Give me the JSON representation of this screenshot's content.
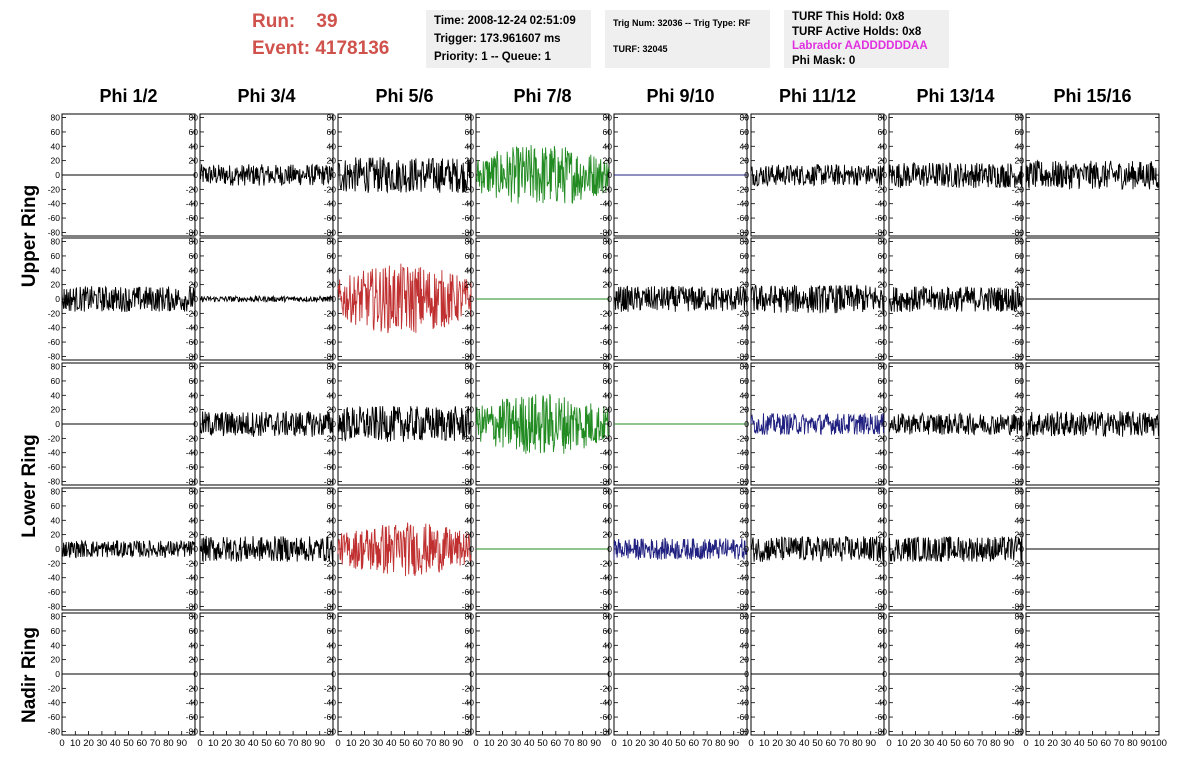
{
  "header": {
    "run_label": "Run:",
    "run_value": "39",
    "event_label": "Event:",
    "event_value": "4178136"
  },
  "info1": {
    "time": "Time: 2008-12-24 02:51:09",
    "trigger": "Trigger: 173.961607 ms",
    "priority": "Priority: 1 -- Queue: 1"
  },
  "info2": {
    "trig": "Trig Num: 32036 -- Trig Type: RF",
    "turf": "TURF: 32045"
  },
  "info3": {
    "hold": "TURF This Hold: 0x8",
    "active": "TURF Active Holds: 0x8",
    "labrador": "Labrador AADDDDDDAA",
    "phimask": "Phi Mask: 0"
  },
  "columns": [
    "Phi 1/2",
    "Phi 3/4",
    "Phi 5/6",
    "Phi 7/8",
    "Phi 9/10",
    "Phi 11/12",
    "Phi 13/14",
    "Phi 15/16"
  ],
  "rings": [
    "Upper Ring",
    "Lower Ring",
    "Nadir Ring"
  ],
  "colors": {
    "black": "#000000",
    "green": "#228b22",
    "red": "#c03030",
    "blue": "#202080"
  },
  "chart_data": {
    "type": "line",
    "xlim": [
      0,
      100
    ],
    "ylim": [
      -85,
      85
    ],
    "xticks": [
      0,
      10,
      20,
      30,
      40,
      50,
      60,
      70,
      80,
      90,
      100
    ],
    "yticks": [
      80,
      60,
      40,
      20,
      0,
      -20,
      -40,
      -60,
      -80
    ],
    "panels": [
      {
        "row": 0,
        "col": 0,
        "color": "black",
        "amplitude": 0
      },
      {
        "row": 0,
        "col": 1,
        "color": "black",
        "amplitude": 15
      },
      {
        "row": 0,
        "col": 2,
        "color": "black",
        "amplitude": 25
      },
      {
        "row": 0,
        "col": 3,
        "color": "green",
        "amplitude": 40
      },
      {
        "row": 0,
        "col": 4,
        "color": "blue",
        "amplitude": 0
      },
      {
        "row": 0,
        "col": 5,
        "color": "black",
        "amplitude": 15
      },
      {
        "row": 0,
        "col": 6,
        "color": "black",
        "amplitude": 18
      },
      {
        "row": 0,
        "col": 7,
        "color": "black",
        "amplitude": 20
      },
      {
        "row": 1,
        "col": 0,
        "color": "black",
        "amplitude": 18
      },
      {
        "row": 1,
        "col": 1,
        "color": "black",
        "amplitude": 4
      },
      {
        "row": 1,
        "col": 2,
        "color": "red",
        "amplitude": 45
      },
      {
        "row": 1,
        "col": 3,
        "color": "green",
        "amplitude": 0
      },
      {
        "row": 1,
        "col": 4,
        "color": "black",
        "amplitude": 18
      },
      {
        "row": 1,
        "col": 5,
        "color": "black",
        "amplitude": 20
      },
      {
        "row": 1,
        "col": 6,
        "color": "black",
        "amplitude": 18
      },
      {
        "row": 1,
        "col": 7,
        "color": "black",
        "amplitude": 0
      },
      {
        "row": 2,
        "col": 0,
        "color": "black",
        "amplitude": 0
      },
      {
        "row": 2,
        "col": 1,
        "color": "black",
        "amplitude": 18
      },
      {
        "row": 2,
        "col": 2,
        "color": "black",
        "amplitude": 25
      },
      {
        "row": 2,
        "col": 3,
        "color": "green",
        "amplitude": 40
      },
      {
        "row": 2,
        "col": 4,
        "color": "green",
        "amplitude": 0
      },
      {
        "row": 2,
        "col": 5,
        "color": "blue",
        "amplitude": 15
      },
      {
        "row": 2,
        "col": 6,
        "color": "black",
        "amplitude": 15
      },
      {
        "row": 2,
        "col": 7,
        "color": "black",
        "amplitude": 18
      },
      {
        "row": 3,
        "col": 0,
        "color": "black",
        "amplitude": 12
      },
      {
        "row": 3,
        "col": 1,
        "color": "black",
        "amplitude": 18
      },
      {
        "row": 3,
        "col": 2,
        "color": "red",
        "amplitude": 35
      },
      {
        "row": 3,
        "col": 3,
        "color": "green",
        "amplitude": 0
      },
      {
        "row": 3,
        "col": 4,
        "color": "blue",
        "amplitude": 15
      },
      {
        "row": 3,
        "col": 5,
        "color": "black",
        "amplitude": 18
      },
      {
        "row": 3,
        "col": 6,
        "color": "black",
        "amplitude": 18
      },
      {
        "row": 3,
        "col": 7,
        "color": "black",
        "amplitude": 0
      },
      {
        "row": 4,
        "col": 0,
        "color": "black",
        "amplitude": 0
      },
      {
        "row": 4,
        "col": 1,
        "color": "black",
        "amplitude": 0
      },
      {
        "row": 4,
        "col": 2,
        "color": "black",
        "amplitude": 0
      },
      {
        "row": 4,
        "col": 3,
        "color": "black",
        "amplitude": 0
      },
      {
        "row": 4,
        "col": 4,
        "color": "black",
        "amplitude": 0
      },
      {
        "row": 4,
        "col": 5,
        "color": "black",
        "amplitude": 0
      },
      {
        "row": 4,
        "col": 6,
        "color": "black",
        "amplitude": 0
      },
      {
        "row": 4,
        "col": 7,
        "color": "black",
        "amplitude": 0
      }
    ]
  }
}
